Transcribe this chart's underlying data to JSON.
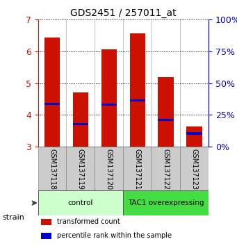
{
  "title": "GDS2451 / 257011_at",
  "samples": [
    "GSM137118",
    "GSM137119",
    "GSM137120",
    "GSM137121",
    "GSM137122",
    "GSM137123"
  ],
  "bar_tops": [
    6.43,
    4.72,
    6.07,
    6.58,
    5.18,
    3.63
  ],
  "bar_bottom": 3.0,
  "percentile_positions": [
    4.35,
    3.72,
    4.32,
    4.45,
    3.84,
    3.42
  ],
  "bar_color": "#cc1100",
  "percentile_color": "#0000cc",
  "ylim": [
    3.0,
    7.0
  ],
  "yticks": [
    3,
    4,
    5,
    6,
    7
  ],
  "right_yticks": [
    0,
    25,
    50,
    75,
    100
  ],
  "right_ylim": [
    0,
    100
  ],
  "groups": [
    {
      "label": "control",
      "indices": [
        0,
        1,
        2
      ],
      "color": "#ccffcc"
    },
    {
      "label": "TAC1 overexpressing",
      "indices": [
        3,
        4,
        5
      ],
      "color": "#44dd44"
    }
  ],
  "strain_label": "strain",
  "legend_items": [
    {
      "label": "transformed count",
      "color": "#cc1100"
    },
    {
      "label": "percentile rank within the sample",
      "color": "#0000cc"
    }
  ],
  "bar_width": 0.55,
  "tick_color_left": "#cc1100",
  "tick_color_right": "#0000cc",
  "bg_color": "#ffffff",
  "plot_bg": "#ffffff",
  "grid_color": "#000000",
  "sample_bg": "#cccccc"
}
